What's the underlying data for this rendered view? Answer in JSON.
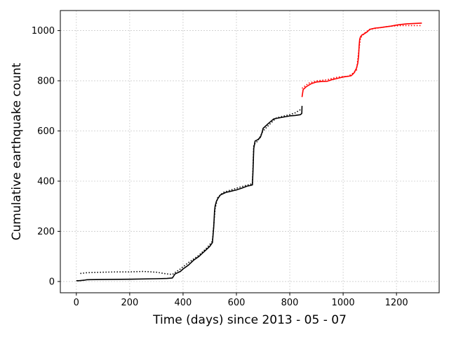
{
  "chart_data": {
    "type": "line",
    "xlabel": "Time (days) since 2013 - 05 - 07",
    "ylabel": "Cumulative earthquake count",
    "xlim": [
      -60,
      1360
    ],
    "ylim": [
      -45,
      1080
    ],
    "xticks": [
      0,
      200,
      400,
      600,
      800,
      1000,
      1200
    ],
    "yticks": [
      0,
      200,
      400,
      600,
      800,
      1000
    ],
    "grid": true,
    "series": [
      {
        "color": "#000000",
        "style": "solid",
        "x": [
          0,
          10,
          30,
          40,
          100,
          200,
          300,
          340,
          360,
          370,
          390,
          400,
          420,
          440,
          460,
          470,
          480,
          490,
          500,
          510,
          515,
          518,
          520,
          525,
          530,
          540,
          560,
          580,
          600,
          620,
          640,
          650,
          660,
          662,
          665,
          670,
          680,
          690,
          695,
          700,
          710,
          720,
          740,
          760,
          780,
          800,
          820,
          840,
          845,
          846
        ],
        "y": [
          3,
          3,
          5,
          7,
          8,
          9,
          11,
          12,
          14,
          30,
          40,
          50,
          65,
          85,
          100,
          110,
          120,
          130,
          140,
          155,
          220,
          280,
          300,
          320,
          330,
          345,
          355,
          360,
          365,
          372,
          380,
          382,
          385,
          440,
          530,
          560,
          565,
          575,
          590,
          610,
          620,
          630,
          648,
          652,
          656,
          660,
          662,
          665,
          670,
          700
        ]
      },
      {
        "color": "#000000",
        "style": "dotted",
        "x": [
          15,
          40,
          100,
          150,
          200,
          250,
          300,
          340,
          360,
          390,
          420,
          440,
          460,
          490,
          510,
          520,
          530,
          550,
          580,
          620,
          660,
          665,
          680,
          700,
          720,
          750,
          780,
          800,
          820,
          840
        ],
        "y": [
          32,
          35,
          37,
          38,
          38,
          40,
          37,
          30,
          28,
          50,
          75,
          90,
          105,
          135,
          160,
          290,
          335,
          355,
          365,
          378,
          390,
          545,
          560,
          600,
          622,
          652,
          660,
          665,
          672,
          685
        ]
      },
      {
        "color": "#ff0000",
        "style": "solid",
        "x": [
          846,
          850,
          860,
          870,
          880,
          900,
          920,
          940,
          960,
          980,
          1000,
          1020,
          1030,
          1040,
          1050,
          1055,
          1058,
          1060,
          1062,
          1065,
          1070,
          1080,
          1090,
          1100,
          1120,
          1140,
          1160,
          1180,
          1200,
          1220,
          1240,
          1260,
          1280,
          1295
        ],
        "y": [
          735,
          765,
          775,
          782,
          788,
          795,
          797,
          798,
          805,
          810,
          815,
          818,
          820,
          830,
          850,
          870,
          900,
          940,
          965,
          975,
          982,
          988,
          995,
          1005,
          1010,
          1012,
          1015,
          1018,
          1022,
          1025,
          1027,
          1028,
          1029,
          1030
        ]
      },
      {
        "color": "#ff0000",
        "style": "dotted",
        "x": [
          846,
          870,
          900,
          940,
          980,
          1020,
          1050,
          1060,
          1065,
          1080,
          1100,
          1140,
          1180,
          1220,
          1260,
          1295
        ],
        "y": [
          770,
          790,
          800,
          804,
          815,
          818,
          840,
          930,
          970,
          990,
          1005,
          1012,
          1018,
          1020,
          1020,
          1020
        ]
      }
    ]
  }
}
